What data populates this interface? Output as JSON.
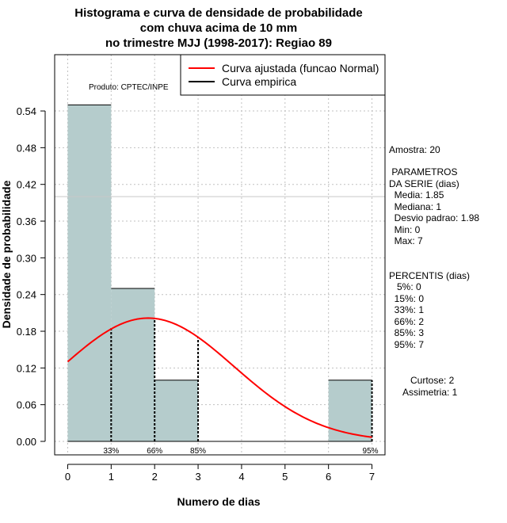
{
  "chart_data": {
    "type": "bar",
    "title_lines": [
      "Histograma e curva de densidade de probabilidade",
      "com chuva acima de 10 mm",
      "no trimestre MJJ (1998-2017): Regiao 89"
    ],
    "xlabel": "Numero de dias",
    "ylabel": "Densidade de probabilidade",
    "product_label": "Produto: CPTEC/INPE",
    "xlim": [
      -0.3,
      7.3
    ],
    "ylim": [
      -0.022,
      0.632
    ],
    "x_ticks": [
      "0",
      "1",
      "2",
      "3",
      "4",
      "5",
      "6",
      "7"
    ],
    "y_ticks": [
      "0.00",
      "0.06",
      "0.12",
      "0.18",
      "0.24",
      "0.30",
      "0.36",
      "0.42",
      "0.48",
      "0.54"
    ],
    "bins": [
      {
        "start": 0,
        "end": 1,
        "density": 0.55
      },
      {
        "start": 1,
        "end": 2,
        "density": 0.25
      },
      {
        "start": 2,
        "end": 3,
        "density": 0.1
      },
      {
        "start": 3,
        "end": 4,
        "density": 0.0
      },
      {
        "start": 4,
        "end": 5,
        "density": 0.0
      },
      {
        "start": 5,
        "end": 6,
        "density": 0.0
      },
      {
        "start": 6,
        "end": 7,
        "density": 0.1
      }
    ],
    "normal_fit": {
      "name": "Curva ajustada (funcao Normal)",
      "mean": 1.85,
      "sd": 1.98,
      "color": "#ff0000",
      "x_range": [
        0,
        7
      ]
    },
    "empirical": {
      "name": "Curva empirica",
      "color": "#000000"
    },
    "reference_line_y": 0.4,
    "percentile_markers": [
      {
        "x": 1,
        "y": 0.185,
        "label": "33%"
      },
      {
        "x": 2,
        "y": 0.2,
        "label": "66%"
      },
      {
        "x": 3,
        "y": 0.171,
        "label": "85%"
      },
      {
        "x": 7,
        "y": 0.1,
        "label": "95%"
      }
    ],
    "colors": {
      "bar_fill": "#b5cccc",
      "grid": "#c0c0c0",
      "axis": "#000000"
    }
  },
  "side_panel": {
    "sample": "Amostra: 20",
    "params_title_1": " PARAMETROS",
    "params_title_2": "DA SERIE (dias)",
    "params": [
      "  Media: 1.85",
      "  Mediana: 1",
      "  Desvio padrao: 1.98",
      "  Min: 0",
      "  Max: 7"
    ],
    "percentis_title": "PERCENTIS (dias)",
    "percentis": [
      "   5%: 0",
      "  15%: 0",
      "  33%: 1",
      "  66%: 2",
      "  85%: 3",
      "  95%: 7"
    ],
    "curtose": "Curtose: 2",
    "assimetria": "Assimetria: 1"
  }
}
